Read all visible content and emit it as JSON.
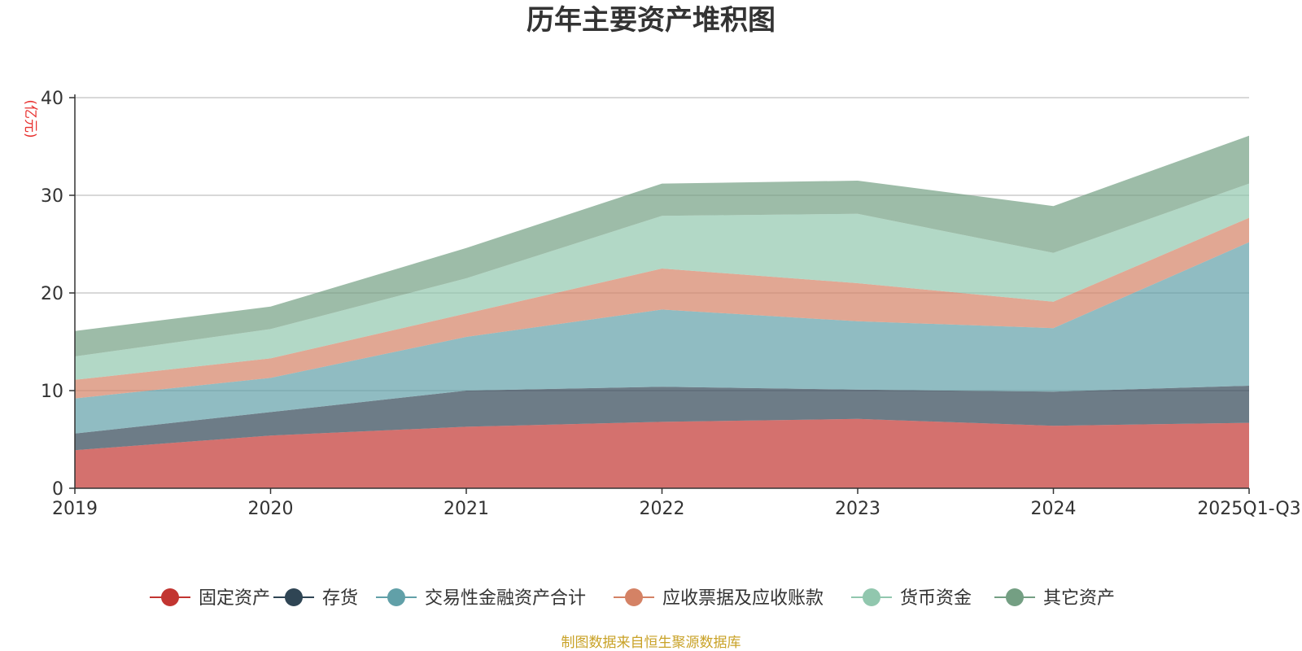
{
  "chart_data": {
    "type": "area",
    "stacked": true,
    "title": "历年主要资产堆积图",
    "ylabel": "(亿元)",
    "xlabel": "",
    "categories": [
      "2019",
      "2020",
      "2021",
      "2022",
      "2023",
      "2024",
      "2025Q1-Q3"
    ],
    "yticks": [
      0,
      10,
      20,
      30,
      40
    ],
    "ylim": [
      0,
      40
    ],
    "grid": true,
    "legend_position": "bottom",
    "series": [
      {
        "name": "固定资产",
        "color": "#c23531",
        "values": [
          3.9,
          5.4,
          6.3,
          6.8,
          7.1,
          6.4,
          6.7
        ]
      },
      {
        "name": "存货",
        "color": "#2f4554",
        "values": [
          1.7,
          2.4,
          3.7,
          3.6,
          3.0,
          3.5,
          3.8
        ]
      },
      {
        "name": "交易性金融资产合计",
        "color": "#61a0a8",
        "values": [
          3.6,
          3.5,
          5.5,
          7.9,
          7.0,
          6.5,
          14.7
        ]
      },
      {
        "name": "应收票据及应收账款",
        "color": "#d48265",
        "values": [
          1.9,
          2.0,
          2.4,
          4.2,
          3.9,
          2.7,
          2.5
        ]
      },
      {
        "name": "货币资金",
        "color": "#91c7ae",
        "values": [
          2.4,
          3.0,
          3.6,
          5.4,
          7.1,
          5.0,
          3.5
        ]
      },
      {
        "name": "其它资产",
        "color": "#749f83",
        "values": [
          2.6,
          2.3,
          3.1,
          3.3,
          3.4,
          4.8,
          4.9
        ]
      }
    ]
  },
  "source_note": "制图数据来自恒生聚源数据库"
}
